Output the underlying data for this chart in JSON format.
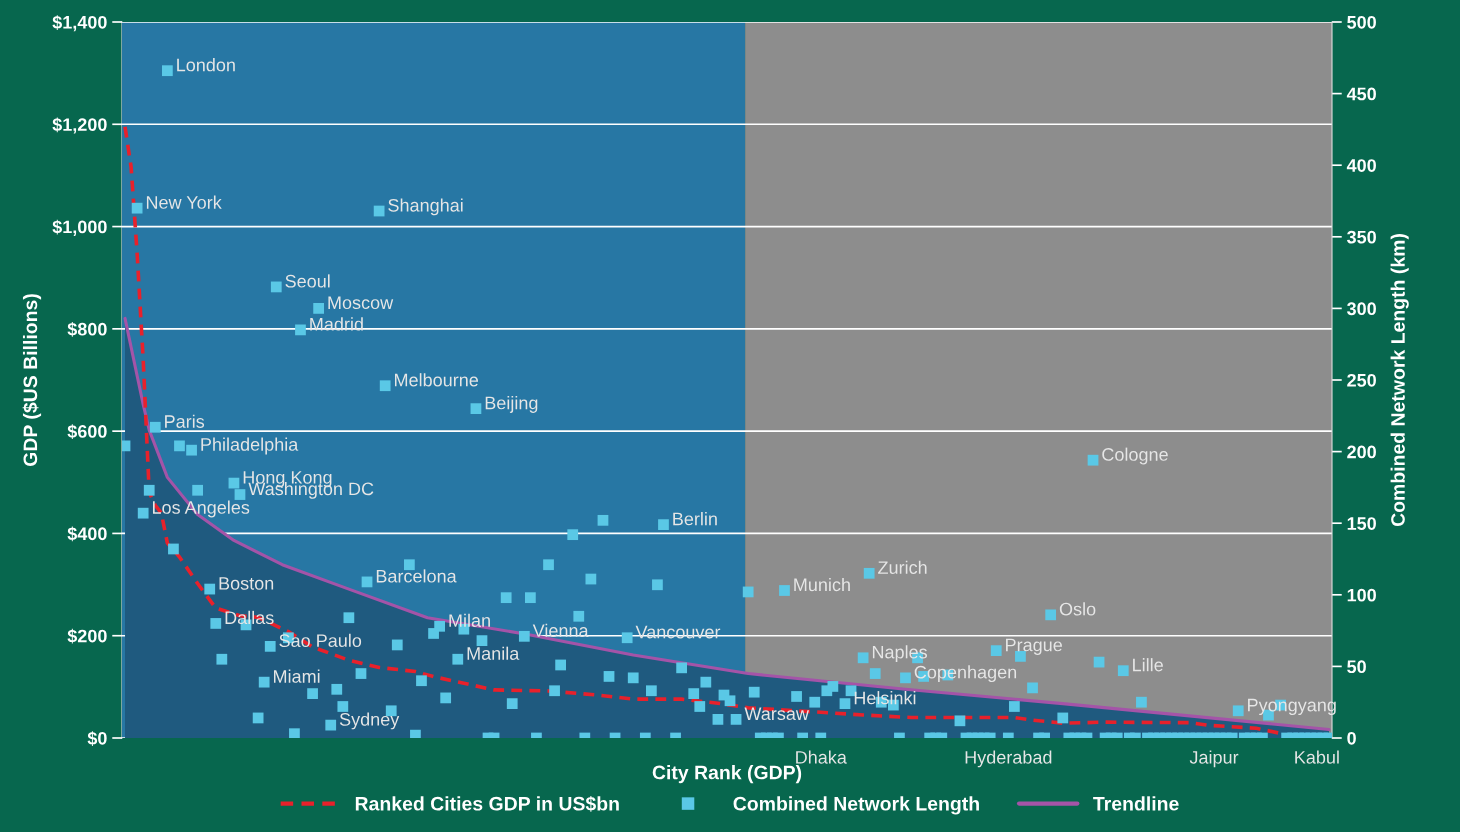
{
  "chart_data": {
    "type": "scatter",
    "xlabel": "City Rank (GDP)",
    "ylabel": "GDP ($US Billions)",
    "y2label": "Combined Network Length (km)",
    "categories": [
      null,
      null,
      null,
      null,
      null,
      null,
      null,
      null,
      null,
      null,
      null,
      null,
      null,
      null,
      null,
      null,
      null,
      null,
      null,
      null,
      null,
      null,
      null,
      null,
      null,
      null,
      null,
      null,
      null,
      null,
      null,
      null,
      null,
      null,
      null,
      null,
      null,
      null,
      null,
      null,
      null,
      null,
      null,
      null,
      null,
      null,
      null,
      null,
      null,
      null,
      null,
      null,
      null,
      null,
      null,
      null,
      null,
      null,
      null,
      null,
      null,
      null,
      null,
      null,
      null,
      null,
      null,
      null,
      null,
      null,
      null,
      null,
      null,
      null,
      null,
      null,
      null,
      null,
      null,
      null,
      null,
      null,
      null,
      null,
      null,
      null,
      null,
      null,
      null,
      null,
      null,
      null,
      null,
      null,
      null,
      null,
      null,
      null,
      null,
      null,
      null,
      null,
      null,
      null,
      null,
      null,
      null,
      null,
      null,
      null,
      null,
      null,
      null,
      null,
      null,
      null,
      null,
      null,
      null,
      null,
      null,
      null,
      null,
      null,
      null,
      null,
      null,
      null,
      null,
      null,
      null,
      null,
      null,
      null,
      null,
      null,
      null,
      null,
      null,
      null,
      null,
      null,
      null,
      null,
      null,
      null,
      null,
      null,
      null,
      null,
      null,
      null,
      null,
      null,
      null,
      null,
      null,
      null,
      null,
      null,
      null,
      null,
      null,
      null,
      null,
      null,
      null,
      null,
      null,
      null,
      null,
      null,
      null,
      null,
      null,
      null,
      null,
      null,
      null,
      null,
      null,
      null,
      null,
      null,
      null,
      null,
      null,
      null,
      null,
      null,
      null,
      null,
      null,
      null,
      null,
      null,
      null,
      null,
      null,
      null
    ],
    "ylim": [
      0,
      1400
    ],
    "yticks": [
      {
        "value": 0,
        "label": "$0"
      },
      {
        "value": 200,
        "label": "$200"
      },
      {
        "value": 400,
        "label": "$400"
      },
      {
        "value": 600,
        "label": "$600"
      },
      {
        "value": 800,
        "label": "$800"
      },
      {
        "value": 1000,
        "label": "$1,000"
      },
      {
        "value": 1200,
        "label": "$1,200"
      },
      {
        "value": 1400,
        "label": "$1,400"
      }
    ],
    "y2lim": [
      0,
      500
    ],
    "y2ticks": [
      0,
      50,
      100,
      150,
      200,
      250,
      300,
      350,
      400,
      450,
      500
    ],
    "grid": "y",
    "legend": "bottom",
    "series": [
      {
        "type": "area",
        "axis": "y2",
        "color": "#1f5a7f",
        "values": [
          293,
          null,
          null,
          233,
          215,
          null,
          null,
          182,
          null,
          null,
          null,
          null,
          156,
          null,
          null,
          null,
          null,
          null,
          138,
          null,
          null,
          null,
          null,
          null,
          null,
          null,
          121,
          null,
          null,
          null,
          null,
          null,
          null,
          null,
          null,
          null,
          null,
          104,
          null,
          null,
          null,
          null,
          null,
          null,
          null,
          null,
          null,
          null,
          null,
          null,
          84,
          null,
          null,
          null,
          null,
          null,
          null,
          null,
          null,
          null,
          null,
          null,
          null,
          null,
          null,
          null,
          null,
          72,
          null,
          null,
          null,
          null,
          null,
          null,
          null,
          null,
          null,
          null,
          null,
          null,
          null,
          null,
          null,
          null,
          58,
          null,
          null,
          null,
          null,
          null,
          null,
          null,
          null,
          null,
          null,
          null,
          null,
          null,
          null,
          null,
          null,
          null,
          null,
          45,
          null,
          null,
          null,
          null,
          null,
          null,
          null,
          null,
          null,
          null,
          null,
          null,
          null,
          null,
          null,
          null,
          null,
          null,
          null,
          null,
          null,
          null,
          null,
          null,
          null,
          34,
          null,
          null,
          null,
          null,
          null,
          null,
          null,
          null,
          null,
          null,
          null,
          null,
          null,
          null,
          null,
          null,
          null,
          null,
          null,
          null,
          null,
          null,
          null,
          null,
          null,
          24,
          null,
          null,
          null,
          null,
          null,
          null,
          null,
          null,
          null,
          null,
          null,
          null,
          null,
          null,
          null,
          null,
          null,
          null,
          null,
          null,
          null,
          null,
          null,
          null,
          null,
          null,
          null,
          null,
          null,
          null,
          null,
          null,
          null,
          null,
          null,
          null,
          null,
          null,
          null,
          null,
          null,
          null,
          null,
          6
        ]
      },
      {
        "name": "Trendline",
        "type": "line",
        "axis": "y2",
        "color": "#a454a8",
        "line_style": "solid",
        "values": [
          293,
          null,
          null,
          233,
          215,
          null,
          null,
          182,
          null,
          null,
          null,
          null,
          156,
          null,
          null,
          null,
          null,
          null,
          138,
          null,
          null,
          null,
          null,
          null,
          null,
          null,
          121,
          null,
          null,
          null,
          null,
          null,
          null,
          null,
          null,
          null,
          null,
          104,
          null,
          null,
          null,
          null,
          null,
          null,
          null,
          null,
          null,
          null,
          null,
          null,
          84,
          null,
          null,
          null,
          null,
          null,
          null,
          null,
          null,
          null,
          null,
          null,
          null,
          null,
          null,
          null,
          null,
          72,
          null,
          null,
          null,
          null,
          null,
          null,
          null,
          null,
          null,
          null,
          null,
          null,
          null,
          null,
          null,
          null,
          58,
          null,
          null,
          null,
          null,
          null,
          null,
          null,
          null,
          null,
          null,
          null,
          null,
          null,
          null,
          null,
          null,
          null,
          null,
          45,
          null,
          null,
          null,
          null,
          null,
          null,
          null,
          null,
          null,
          null,
          null,
          null,
          null,
          null,
          null,
          null,
          null,
          null,
          null,
          null,
          null,
          null,
          null,
          null,
          null,
          34,
          null,
          null,
          null,
          null,
          null,
          null,
          null,
          null,
          null,
          null,
          null,
          null,
          null,
          null,
          null,
          null,
          null,
          null,
          null,
          null,
          null,
          null,
          null,
          null,
          null,
          24,
          null,
          null,
          null,
          null,
          null,
          null,
          null,
          null,
          null,
          null,
          null,
          null,
          null,
          null,
          null,
          null,
          null,
          null,
          null,
          null,
          null,
          null,
          null,
          null,
          null,
          null,
          null,
          null,
          null,
          null,
          null,
          null,
          null,
          null,
          null,
          null,
          null,
          null,
          null,
          null,
          null,
          null,
          null,
          6
        ]
      },
      {
        "name": "Ranked Cities GDP in US$bn",
        "type": "line",
        "color": "#e8212b",
        "line_style": "dashed",
        "values": [
          1195,
          1117,
          948,
          740,
          480,
          455,
          440,
          381,
          null,
          354,
          null,
          null,
          302,
          null,
          null,
          254,
          null,
          null,
          null,
          239,
          null,
          null,
          236,
          null,
          null,
          null,
          null,
          208,
          null,
          null,
          null,
          178,
          null,
          null,
          null,
          null,
          null,
          152,
          null,
          null,
          null,
          null,
          138,
          null,
          null,
          null,
          null,
          null,
          130,
          null,
          null,
          120,
          null,
          null,
          null,
          null,
          null,
          null,
          null,
          null,
          null,
          94,
          null,
          null,
          null,
          null,
          null,
          null,
          null,
          null,
          92,
          null,
          null,
          null,
          null,
          null,
          null,
          null,
          84,
          null,
          null,
          null,
          null,
          null,
          76,
          null,
          null,
          null,
          null,
          null,
          null,
          null,
          76,
          null,
          null,
          null,
          null,
          null,
          68,
          null,
          null,
          null,
          null,
          59,
          null,
          null,
          null,
          null,
          null,
          null,
          null,
          null,
          null,
          null,
          51,
          null,
          null,
          null,
          null,
          null,
          null,
          null,
          45,
          null,
          null,
          null,
          null,
          null,
          null,
          null,
          40,
          null,
          null,
          null,
          null,
          null,
          null,
          null,
          null,
          null,
          null,
          null,
          null,
          null,
          null,
          null,
          null,
          40,
          null,
          null,
          35,
          null,
          null,
          null,
          null,
          29,
          null,
          null,
          null,
          null,
          null,
          null,
          31,
          null,
          null,
          null,
          null,
          null,
          null,
          null,
          null,
          null,
          null,
          null,
          null,
          null,
          30,
          null,
          null,
          25,
          null,
          null,
          null,
          null,
          null,
          null,
          null,
          19,
          null,
          null,
          null,
          9,
          null,
          null,
          null,
          null,
          null,
          null,
          null,
          null
        ]
      },
      {
        "name": "Combined Network Length",
        "axis": "y2",
        "color": "#5ac8e6",
        "marker": "square",
        "values": [
          204,
          null,
          370,
          157,
          173,
          217,
          null,
          466,
          132,
          204,
          null,
          201,
          173,
          null,
          104,
          80,
          55,
          null,
          178,
          170,
          79,
          null,
          14,
          39,
          64,
          315,
          null,
          70,
          3,
          285,
          null,
          31,
          300,
          null,
          9,
          34,
          22,
          84,
          null,
          45,
          109,
          null,
          368,
          246,
          19,
          65,
          null,
          121,
          2,
          40,
          null,
          73,
          78,
          28,
          null,
          55,
          76,
          null,
          230,
          68,
          0,
          0,
          null,
          98,
          24,
          null,
          71,
          98,
          0,
          null,
          121,
          33,
          51,
          null,
          142,
          85,
          0,
          111,
          null,
          152,
          43,
          0,
          null,
          70,
          42,
          null,
          0,
          33,
          107,
          149,
          null,
          0,
          49,
          null,
          31,
          22,
          39,
          null,
          13,
          30,
          26,
          13,
          null,
          102,
          32,
          0,
          0,
          0,
          0,
          103,
          null,
          29,
          0,
          null,
          25,
          0,
          33,
          36,
          null,
          24,
          33,
          null,
          56,
          115,
          45,
          25,
          null,
          23,
          0,
          42,
          null,
          56,
          43,
          0,
          0,
          0,
          44,
          null,
          12,
          0,
          0,
          0,
          0,
          0,
          61,
          null,
          0,
          22,
          57,
          null,
          35,
          0,
          0,
          86,
          null,
          14,
          0,
          0,
          0,
          0,
          194,
          53,
          0,
          0,
          0,
          47,
          0,
          0,
          25,
          0,
          0,
          0,
          0,
          0,
          0,
          0,
          0,
          0,
          0,
          0,
          0,
          0,
          0,
          0,
          19,
          0,
          0,
          0,
          0,
          16,
          null,
          23,
          0,
          0,
          0,
          0,
          0,
          0,
          0,
          0
        ],
        "value_labels": [
          null,
          null,
          "New York",
          "Los Angeles",
          null,
          "Paris",
          null,
          "London",
          null,
          null,
          null,
          "Philadelphia",
          null,
          null,
          "Boston",
          "Dallas",
          null,
          null,
          "Hong Kong",
          "Washington DC",
          null,
          null,
          null,
          "Miami",
          "Sao Paulo",
          "Seoul",
          null,
          null,
          null,
          "Madrid",
          null,
          null,
          "Moscow",
          null,
          "Sydney",
          null,
          null,
          null,
          null,
          null,
          "Barcelona",
          null,
          "Shanghai",
          "Melbourne",
          null,
          null,
          null,
          null,
          null,
          null,
          null,
          null,
          "Milan",
          null,
          null,
          "Manila",
          null,
          null,
          "Beijing",
          null,
          null,
          null,
          null,
          null,
          null,
          null,
          "Vienna",
          null,
          null,
          null,
          null,
          null,
          null,
          null,
          null,
          null,
          null,
          null,
          null,
          null,
          null,
          null,
          null,
          "Vancouver",
          null,
          null,
          null,
          null,
          null,
          "Berlin",
          null,
          null,
          null,
          null,
          null,
          null,
          null,
          null,
          null,
          null,
          null,
          "Warsaw",
          null,
          null,
          null,
          null,
          null,
          null,
          null,
          "Munich",
          null,
          null,
          null,
          null,
          null,
          "Dhaka",
          null,
          null,
          null,
          "Helsinki",
          null,
          null,
          "Naples",
          "Zurich",
          null,
          null,
          null,
          null,
          null,
          "Copenhagen",
          null,
          null,
          null,
          null,
          null,
          null,
          null,
          null,
          null,
          null,
          null,
          null,
          null,
          null,
          "Prague",
          null,
          "Hyderabad",
          null,
          null,
          null,
          null,
          null,
          null,
          "Oslo",
          null,
          null,
          null,
          null,
          null,
          null,
          "Cologne",
          null,
          null,
          null,
          null,
          "Lille",
          null,
          null,
          null,
          null,
          null,
          null,
          null,
          null,
          null,
          null,
          null,
          null,
          null,
          null,
          "Jaipur",
          null,
          null,
          null,
          "Pyongyang",
          null,
          null,
          null,
          null,
          null,
          null,
          null,
          null,
          null,
          null,
          null,
          null,
          "Kabul",
          null,
          null
        ]
      }
    ]
  }
}
